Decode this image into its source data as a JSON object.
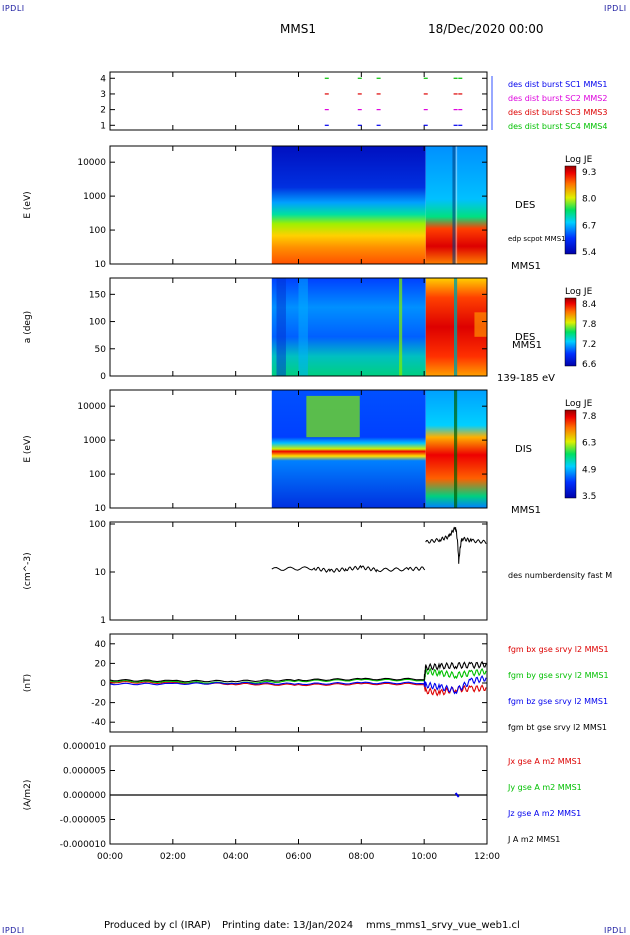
{
  "header": {
    "logo_left": "IPDLI",
    "logo_right": "IPDLI",
    "spacecraft": "MMS1",
    "date": "18/Dec/2020 00:00"
  },
  "footer": {
    "produced_by": "Produced by cl (IRAP)",
    "printing_date": "Printing date: 13/Jan/2024",
    "file": "mms_mms1_srvy_vue_web1.cl",
    "logo_left": "IPDLI",
    "logo_right": "IPDLI"
  },
  "colors": {
    "red": "#dd0000",
    "green": "#00c000",
    "blue": "#0000ee",
    "magenta": "#dd00dd",
    "black": "#000000"
  },
  "time_axis": {
    "tick_labels": [
      "00:00",
      "02:00",
      "04:00",
      "06:00",
      "08:00",
      "10:00",
      "12:00"
    ],
    "range_hours": [
      0,
      12
    ]
  },
  "chart_data": [
    {
      "type": "scatter",
      "id": "burst",
      "yticks": [
        "1",
        "2",
        "3",
        "4"
      ],
      "ylim": [
        0.7,
        4.4
      ],
      "legend": [
        {
          "label": "des dist burst SC1 MMS1",
          "color": "#0000ee",
          "level": 1
        },
        {
          "label": "des dist burst SC2 MMS2",
          "color": "#dd00dd",
          "level": 2
        },
        {
          "label": "des dist burst SC3 MMS3",
          "color": "#dd0000",
          "level": 3
        },
        {
          "label": "des dist burst SC4 MMS4",
          "color": "#00c000",
          "level": 4
        }
      ],
      "x": [
        6.9,
        7.95,
        8.55,
        10.05,
        11.0,
        11.15
      ]
    },
    {
      "type": "heatmap",
      "id": "des_energy",
      "ylabel": "E (eV)",
      "yticks": [
        "10",
        "100",
        "1000",
        "10000"
      ],
      "ylim": [
        10,
        30000
      ],
      "data_start_hours": 5.15,
      "colorbar_title": "Log JE",
      "colorbar_ticks": [
        "9.3",
        "8.0",
        "6.7",
        "5.4"
      ],
      "side_label_top": "DES",
      "side_label_mid": "edp scpot MMS1",
      "side_label_bottom": "MMS1"
    },
    {
      "type": "heatmap",
      "id": "des_pitch",
      "ylabel": "a (deg)",
      "yticks": [
        "0",
        "50",
        "100",
        "150"
      ],
      "ylim": [
        0,
        180
      ],
      "data_start_hours": 5.15,
      "colorbar_title": "Log JE",
      "colorbar_ticks": [
        "8.4",
        "7.8",
        "7.2",
        "6.6"
      ],
      "side_label_top": "DES",
      "side_label_mid": "MMS1",
      "side_label_bottom": "139-185 eV"
    },
    {
      "type": "heatmap",
      "id": "dis_energy",
      "ylabel": "E (eV)",
      "yticks": [
        "10",
        "100",
        "1000",
        "10000"
      ],
      "ylim": [
        10,
        30000
      ],
      "data_start_hours": 5.15,
      "colorbar_title": "Log JE",
      "colorbar_ticks": [
        "7.8",
        "6.3",
        "4.9",
        "3.5"
      ],
      "side_label_top": "DIS",
      "side_label_bottom": "MMS1"
    },
    {
      "type": "line",
      "id": "density",
      "ylabel": "(cm^-3)",
      "yticks": [
        "1",
        "10",
        "100"
      ],
      "ylim": [
        1,
        110
      ],
      "legend": [
        {
          "label": "des numberdensity fast M",
          "color": "#000000"
        }
      ],
      "segments": [
        {
          "x": [
            5.15,
            6.5,
            7.0,
            7.5,
            8.0,
            8.5,
            9.5,
            10.05
          ],
          "y": [
            11.5,
            12.0,
            10.5,
            11.5,
            12.5,
            11.0,
            11.5,
            12.0
          ]
        },
        {
          "x": [
            10.05,
            10.5,
            10.8,
            11.0,
            11.1,
            11.2,
            11.5,
            12.0
          ],
          "y": [
            42,
            47,
            55,
            85,
            15,
            50,
            45,
            42
          ]
        }
      ]
    },
    {
      "type": "line",
      "id": "bfield",
      "ylabel": "(nT)",
      "yticks": [
        "-40",
        "-20",
        "0",
        "20",
        "40"
      ],
      "ylim": [
        -50,
        50
      ],
      "legend": [
        {
          "label": "fgm bx gse srvy l2 MMS1",
          "color": "#dd0000"
        },
        {
          "label": "fgm by gse srvy l2 MMS1",
          "color": "#00c000"
        },
        {
          "label": "fgm bz gse srvy l2 MMS1",
          "color": "#0000ee"
        },
        {
          "label": "fgm bt gse srvy l2 MMS1",
          "color": "#000000"
        }
      ],
      "x": [
        0,
        2,
        4,
        6,
        8,
        10.0,
        10.05,
        10.5,
        11.0,
        11.5,
        12.0
      ],
      "series": [
        {
          "name": "fgm bx gse srvy l2 MMS1",
          "color": "#dd0000",
          "values": [
            1,
            0,
            -1,
            -2,
            -1,
            -1,
            -8,
            -10,
            -6,
            -6,
            -5
          ]
        },
        {
          "name": "fgm by gse srvy l2 MMS1",
          "color": "#00c000",
          "values": [
            2,
            1,
            0,
            2,
            3,
            3,
            12,
            10,
            8,
            10,
            12
          ]
        },
        {
          "name": "fgm bz gse srvy l2 MMS1",
          "color": "#0000ee",
          "values": [
            -1,
            -1,
            0,
            -1,
            0,
            0,
            -2,
            -4,
            -8,
            2,
            5
          ]
        },
        {
          "name": "fgm bt gse srvy l2 MMS1",
          "color": "#000000",
          "values": [
            3,
            2,
            2,
            3,
            4,
            4,
            16,
            17,
            18,
            18,
            19
          ]
        }
      ]
    },
    {
      "type": "line",
      "id": "current",
      "ylabel": "(A/m2)",
      "yticks": [
        "-0.000010",
        "-0.000005",
        "0.000000",
        "0.000005",
        "0.000010"
      ],
      "ylim": [
        -1e-05,
        1e-05
      ],
      "legend": [
        {
          "label": "Jx gse A m2 MMS1",
          "color": "#dd0000"
        },
        {
          "label": "Jy gse A m2 MMS1",
          "color": "#00c000"
        },
        {
          "label": "Jz gse A m2 MMS1",
          "color": "#0000ee"
        },
        {
          "label": "J A m2 MMS1",
          "color": "#000000"
        }
      ],
      "x": [
        0,
        12
      ],
      "values": [
        0,
        0
      ]
    }
  ]
}
